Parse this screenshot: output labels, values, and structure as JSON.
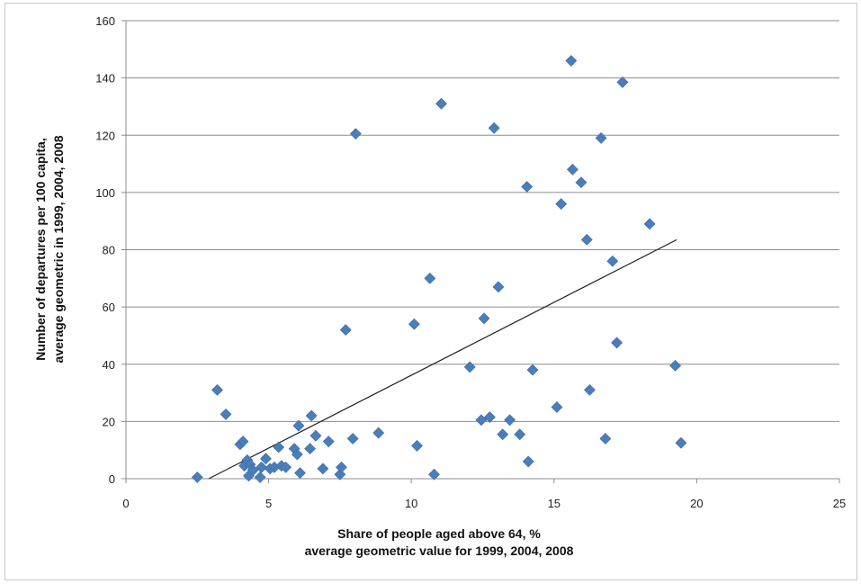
{
  "chart_data": {
    "type": "scatter",
    "xlabel_lines": [
      "Share of people aged above 64, %",
      "average geometric value for 1999, 2004, 2008"
    ],
    "ylabel_lines": [
      "Number of departures per 100 capita,",
      "average geometric in 1999, 2004, 2008"
    ],
    "xlim": [
      0,
      25
    ],
    "ylim": [
      0,
      160
    ],
    "x_ticks": [
      0,
      5,
      10,
      15,
      20,
      25
    ],
    "y_ticks": [
      0,
      20,
      40,
      60,
      80,
      100,
      120,
      140,
      160
    ],
    "grid": {
      "horizontal": true,
      "vertical": false
    },
    "legend": "none",
    "marker": "diamond",
    "series": [
      {
        "color": "#4a7ebb",
        "points": [
          [
            2.5,
            0.5
          ],
          [
            3.2,
            31
          ],
          [
            3.5,
            22.5
          ],
          [
            4.0,
            12
          ],
          [
            4.1,
            13
          ],
          [
            4.15,
            4.5
          ],
          [
            4.25,
            6.5
          ],
          [
            4.3,
            1
          ],
          [
            4.35,
            5
          ],
          [
            4.45,
            3
          ],
          [
            4.7,
            0.5
          ],
          [
            4.75,
            4
          ],
          [
            4.9,
            7
          ],
          [
            5.05,
            3.5
          ],
          [
            5.2,
            4
          ],
          [
            5.35,
            11
          ],
          [
            5.45,
            4.5
          ],
          [
            5.6,
            4
          ],
          [
            5.9,
            10.5
          ],
          [
            6.0,
            8.5
          ],
          [
            6.05,
            18.5
          ],
          [
            6.1,
            2
          ],
          [
            6.45,
            10.5
          ],
          [
            6.5,
            22
          ],
          [
            6.65,
            15
          ],
          [
            6.9,
            3.5
          ],
          [
            7.1,
            13
          ],
          [
            7.5,
            1.5
          ],
          [
            7.55,
            4
          ],
          [
            7.7,
            52
          ],
          [
            7.95,
            14
          ],
          [
            8.05,
            120.5
          ],
          [
            8.85,
            16
          ],
          [
            10.1,
            54
          ],
          [
            10.2,
            11.5
          ],
          [
            10.65,
            70
          ],
          [
            10.8,
            1.5
          ],
          [
            11.05,
            131
          ],
          [
            12.05,
            39
          ],
          [
            12.45,
            20.5
          ],
          [
            12.55,
            56
          ],
          [
            12.75,
            21.5
          ],
          [
            12.9,
            122.5
          ],
          [
            13.05,
            67
          ],
          [
            13.2,
            15.5
          ],
          [
            13.45,
            20.5
          ],
          [
            13.8,
            15.5
          ],
          [
            14.05,
            102
          ],
          [
            14.1,
            6
          ],
          [
            14.25,
            38
          ],
          [
            15.1,
            25
          ],
          [
            15.25,
            96
          ],
          [
            15.6,
            146
          ],
          [
            15.65,
            108
          ],
          [
            15.95,
            103.5
          ],
          [
            16.15,
            83.5
          ],
          [
            16.25,
            31
          ],
          [
            16.65,
            119
          ],
          [
            16.8,
            14
          ],
          [
            17.05,
            76
          ],
          [
            17.2,
            47.5
          ],
          [
            17.4,
            138.5
          ],
          [
            18.35,
            89
          ],
          [
            19.25,
            39.5
          ],
          [
            19.45,
            12.5
          ]
        ]
      }
    ],
    "trendline": {
      "type": "linear",
      "x_start": 2.9,
      "y_start": 0,
      "x_end": 19.3,
      "y_end": 83.5,
      "color": "#1f1f1f"
    }
  }
}
